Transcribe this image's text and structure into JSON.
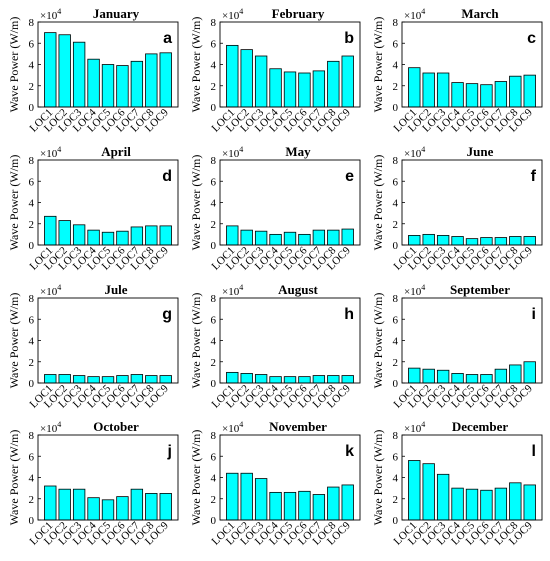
{
  "figure": {
    "y_axis_label": "Wave Power (W/m)",
    "scale_text": "×10",
    "scale_exponent": "4",
    "bar_color": "#00ffff",
    "axis_color": "#000000"
  },
  "chart_data": [
    {
      "type": "bar",
      "title": "January",
      "panel_letter": "a",
      "categories": [
        "LOC1",
        "LOC2",
        "LOC3",
        "LOC4",
        "LOC5",
        "LOC6",
        "LOC7",
        "LOC8",
        "LOC9"
      ],
      "values": [
        7.0,
        6.8,
        6.1,
        4.5,
        4.0,
        3.9,
        4.3,
        5.0,
        5.1
      ],
      "ylabel": "Wave Power (W/m)",
      "ylim": [
        0,
        8
      ],
      "yticks": [
        0,
        2,
        4,
        6,
        8
      ],
      "y_scale": "×10^4"
    },
    {
      "type": "bar",
      "title": "February",
      "panel_letter": "b",
      "categories": [
        "LOC1",
        "LOC2",
        "LOC3",
        "LOC4",
        "LOC5",
        "LOC6",
        "LOC7",
        "LOC8",
        "LOC9"
      ],
      "values": [
        5.8,
        5.4,
        4.8,
        3.6,
        3.3,
        3.2,
        3.4,
        4.3,
        4.8
      ],
      "ylabel": "Wave Power (W/m)",
      "ylim": [
        0,
        8
      ],
      "yticks": [
        0,
        2,
        4,
        6,
        8
      ],
      "y_scale": "×10^4"
    },
    {
      "type": "bar",
      "title": "March",
      "panel_letter": "c",
      "categories": [
        "LOC1",
        "LOC2",
        "LOC3",
        "LOC4",
        "LOC5",
        "LOC6",
        "LOC7",
        "LOC8",
        "LOC9"
      ],
      "values": [
        3.7,
        3.2,
        3.2,
        2.3,
        2.2,
        2.1,
        2.4,
        2.9,
        3.0
      ],
      "ylabel": "Wave Power (W/m)",
      "ylim": [
        0,
        8
      ],
      "yticks": [
        0,
        2,
        4,
        6,
        8
      ],
      "y_scale": "×10^4"
    },
    {
      "type": "bar",
      "title": "April",
      "panel_letter": "d",
      "categories": [
        "LOC1",
        "LOC2",
        "LOC3",
        "LOC4",
        "LOC5",
        "LOC6",
        "LOC7",
        "LOC8",
        "LOC9"
      ],
      "values": [
        2.7,
        2.3,
        1.9,
        1.4,
        1.2,
        1.3,
        1.7,
        1.8,
        1.8
      ],
      "ylabel": "Wave Power (W/m)",
      "ylim": [
        0,
        8
      ],
      "yticks": [
        0,
        2,
        4,
        6,
        8
      ],
      "y_scale": "×10^4"
    },
    {
      "type": "bar",
      "title": "May",
      "panel_letter": "e",
      "categories": [
        "LOC1",
        "LOC2",
        "LOC3",
        "LOC4",
        "LOC5",
        "LOC6",
        "LOC7",
        "LOC8",
        "LOC9"
      ],
      "values": [
        1.8,
        1.4,
        1.3,
        1.0,
        1.2,
        1.0,
        1.4,
        1.4,
        1.5
      ],
      "ylabel": "Wave Power (W/m)",
      "ylim": [
        0,
        8
      ],
      "yticks": [
        0,
        2,
        4,
        6,
        8
      ],
      "y_scale": "×10^4"
    },
    {
      "type": "bar",
      "title": "June",
      "panel_letter": "f",
      "categories": [
        "LOC1",
        "LOC2",
        "LOC3",
        "LOC4",
        "LOC5",
        "LOC6",
        "LOC7",
        "LOC8",
        "LOC9"
      ],
      "values": [
        0.9,
        1.0,
        0.9,
        0.8,
        0.6,
        0.7,
        0.7,
        0.8,
        0.8
      ],
      "ylabel": "Wave Power (W/m)",
      "ylim": [
        0,
        8
      ],
      "yticks": [
        0,
        2,
        4,
        6,
        8
      ],
      "y_scale": "×10^4"
    },
    {
      "type": "bar",
      "title": "Jule",
      "panel_letter": "g",
      "categories": [
        "LOC1",
        "LOC2",
        "LOC3",
        "LOC4",
        "LOC5",
        "LOC6",
        "LOC7",
        "LOC8",
        "LOC9"
      ],
      "values": [
        0.8,
        0.8,
        0.7,
        0.6,
        0.6,
        0.7,
        0.8,
        0.7,
        0.7
      ],
      "ylabel": "Wave Power (W/m)",
      "ylim": [
        0,
        8
      ],
      "yticks": [
        0,
        2,
        4,
        6,
        8
      ],
      "y_scale": "×10^4"
    },
    {
      "type": "bar",
      "title": "August",
      "panel_letter": "h",
      "categories": [
        "LOC1",
        "LOC2",
        "LOC3",
        "LOC4",
        "LOC5",
        "LOC6",
        "LOC7",
        "LOC8",
        "LOC9"
      ],
      "values": [
        1.0,
        0.9,
        0.8,
        0.6,
        0.6,
        0.6,
        0.7,
        0.7,
        0.7
      ],
      "ylabel": "Wave Power (W/m)",
      "ylim": [
        0,
        8
      ],
      "yticks": [
        0,
        2,
        4,
        6,
        8
      ],
      "y_scale": "×10^4"
    },
    {
      "type": "bar",
      "title": "September",
      "panel_letter": "i",
      "categories": [
        "LOC1",
        "LOC2",
        "LOC3",
        "LOC4",
        "LOC5",
        "LOC6",
        "LOC7",
        "LOC8",
        "LOC9"
      ],
      "values": [
        1.4,
        1.3,
        1.2,
        0.9,
        0.8,
        0.8,
        1.3,
        1.7,
        2.0
      ],
      "ylabel": "Wave Power (W/m)",
      "ylim": [
        0,
        8
      ],
      "yticks": [
        0,
        2,
        4,
        6,
        8
      ],
      "y_scale": "×10^4"
    },
    {
      "type": "bar",
      "title": "October",
      "panel_letter": "j",
      "categories": [
        "LOC1",
        "LOC2",
        "LOC3",
        "LOC4",
        "LOC5",
        "LOC6",
        "LOC7",
        "LOC8",
        "LOC9"
      ],
      "values": [
        3.2,
        2.9,
        2.9,
        2.1,
        1.9,
        2.2,
        2.9,
        2.5,
        2.5
      ],
      "ylabel": "Wave Power (W/m)",
      "ylim": [
        0,
        8
      ],
      "yticks": [
        0,
        2,
        4,
        6,
        8
      ],
      "y_scale": "×10^4"
    },
    {
      "type": "bar",
      "title": "November",
      "panel_letter": "k",
      "categories": [
        "LOC1",
        "LOC2",
        "LOC3",
        "LOC4",
        "LOC5",
        "LOC6",
        "LOC7",
        "LOC8",
        "LOC9"
      ],
      "values": [
        4.4,
        4.4,
        3.9,
        2.6,
        2.6,
        2.7,
        2.4,
        3.1,
        3.3
      ],
      "ylabel": "Wave Power (W/m)",
      "ylim": [
        0,
        8
      ],
      "yticks": [
        0,
        2,
        4,
        6,
        8
      ],
      "y_scale": "×10^4"
    },
    {
      "type": "bar",
      "title": "December",
      "panel_letter": "l",
      "categories": [
        "LOC1",
        "LOC2",
        "LOC3",
        "LOC4",
        "LOC5",
        "LOC6",
        "LOC7",
        "LOC8",
        "LOC9"
      ],
      "values": [
        5.6,
        5.3,
        4.3,
        3.0,
        2.9,
        2.8,
        3.0,
        3.5,
        3.3
      ],
      "ylabel": "Wave Power (W/m)",
      "ylim": [
        0,
        8
      ],
      "yticks": [
        0,
        2,
        4,
        6,
        8
      ],
      "y_scale": "×10^4"
    }
  ]
}
